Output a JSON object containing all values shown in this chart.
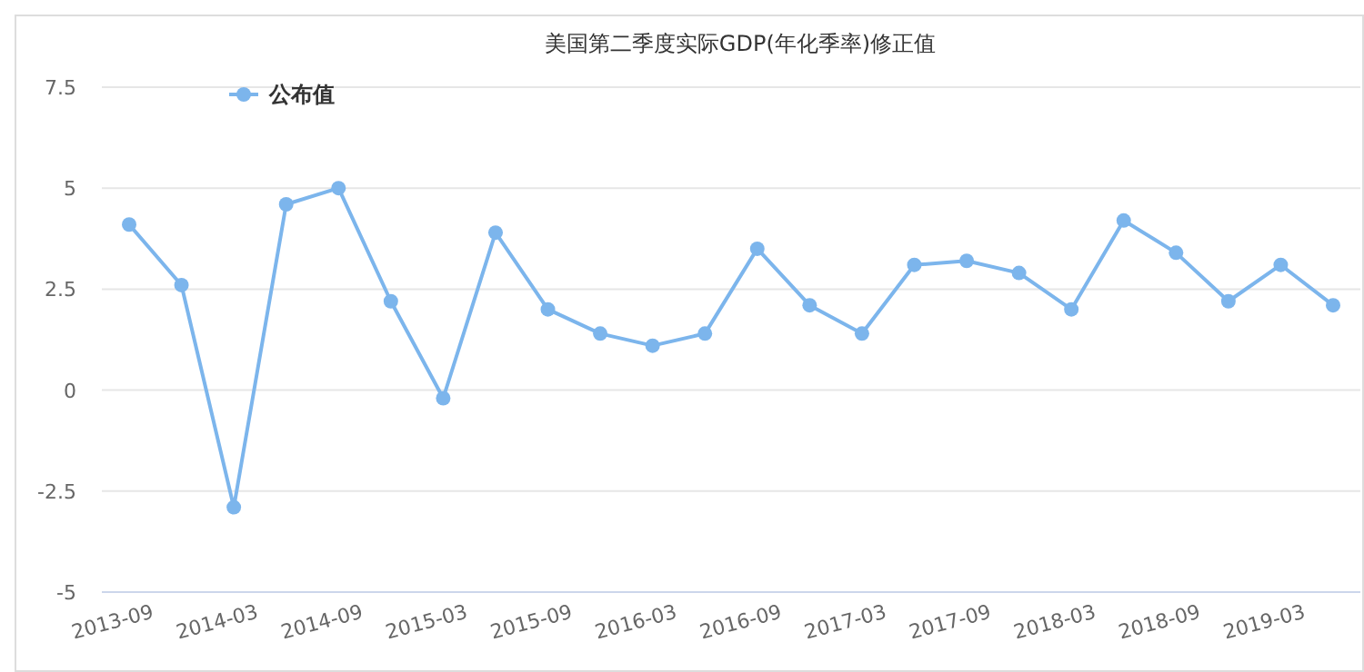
{
  "chart_data": {
    "type": "line",
    "title": "美国第二季度实际GDP(年化季率)修正值",
    "categories": [
      "2013-09",
      null,
      "2014-03",
      null,
      "2014-09",
      null,
      "2015-03",
      null,
      "2015-09",
      null,
      "2016-03",
      null,
      "2016-09",
      null,
      "2017-03",
      null,
      "2017-09",
      null,
      "2018-03",
      null,
      "2018-09",
      null,
      "2019-03",
      null
    ],
    "series": [
      {
        "name": "公布值",
        "color": "#7cb5ec",
        "values": [
          4.1,
          2.6,
          -2.9,
          4.6,
          5.0,
          2.2,
          -0.2,
          3.9,
          2.0,
          1.4,
          1.1,
          1.4,
          3.5,
          2.1,
          1.4,
          3.1,
          3.2,
          2.9,
          2.0,
          4.2,
          3.4,
          2.2,
          3.1,
          2.1
        ]
      }
    ],
    "ylim": [
      -5,
      7.5
    ],
    "yticks": [
      -5,
      -2.5,
      0,
      2.5,
      5,
      7.5
    ],
    "grid": "y",
    "legend": "top left",
    "marker": "circle",
    "line_style": "solid"
  }
}
